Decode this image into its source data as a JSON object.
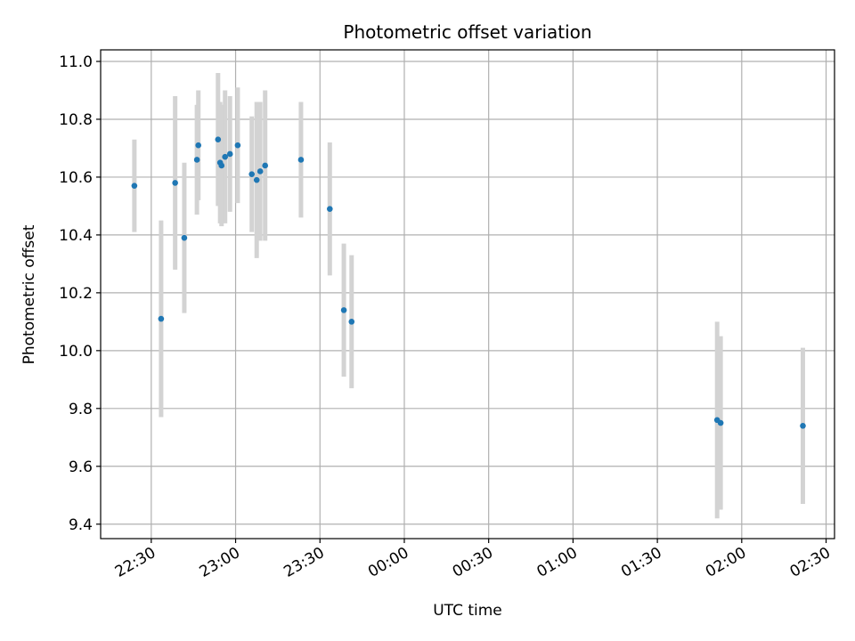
{
  "chart_data": {
    "type": "scatter",
    "title": "Photometric offset variation",
    "xlabel": "UTC time",
    "ylabel": "Photometric offset",
    "grid": true,
    "ylim": [
      9.35,
      11.04
    ],
    "xlim": [
      "22:12",
      "02:33"
    ],
    "yticks": [
      "9.4",
      "9.6",
      "9.8",
      "10.0",
      "10.2",
      "10.4",
      "10.6",
      "10.8",
      "11.0"
    ],
    "xticks": [
      "22:30",
      "23:00",
      "23:30",
      "00:00",
      "00:30",
      "01:00",
      "01:30",
      "02:00",
      "02:30"
    ],
    "colors": {
      "point": "#1f77b4",
      "errorbar": "#d3d3d3",
      "grid": "#b0b0b0"
    },
    "series": [
      {
        "points": [
          {
            "x": "22:24:00",
            "y": 10.57,
            "err": 0.16
          },
          {
            "x": "22:33:30",
            "y": 10.11,
            "err": 0.34
          },
          {
            "x": "22:38:30",
            "y": 10.58,
            "err": 0.3
          },
          {
            "x": "22:41:45",
            "y": 10.39,
            "err": 0.26
          },
          {
            "x": "22:46:15",
            "y": 10.66,
            "err": 0.19
          },
          {
            "x": "22:46:45",
            "y": 10.71,
            "err": 0.19
          },
          {
            "x": "22:53:45",
            "y": 10.73,
            "err": 0.23
          },
          {
            "x": "22:54:30",
            "y": 10.65,
            "err": 0.21
          },
          {
            "x": "22:55:00",
            "y": 10.64,
            "err": 0.21
          },
          {
            "x": "22:56:15",
            "y": 10.67,
            "err": 0.23
          },
          {
            "x": "22:58:00",
            "y": 10.68,
            "err": 0.2
          },
          {
            "x": "23:00:45",
            "y": 10.71,
            "err": 0.2
          },
          {
            "x": "23:05:45",
            "y": 10.61,
            "err": 0.2
          },
          {
            "x": "23:07:30",
            "y": 10.59,
            "err": 0.27
          },
          {
            "x": "23:08:45",
            "y": 10.62,
            "err": 0.24
          },
          {
            "x": "23:10:30",
            "y": 10.64,
            "err": 0.26
          },
          {
            "x": "23:23:15",
            "y": 10.66,
            "err": 0.2
          },
          {
            "x": "23:33:30",
            "y": 10.49,
            "err": 0.23
          },
          {
            "x": "23:38:30",
            "y": 10.14,
            "err": 0.23
          },
          {
            "x": "23:41:15",
            "y": 10.1,
            "err": 0.23
          },
          {
            "x": "01:51:15",
            "y": 9.76,
            "err": 0.34
          },
          {
            "x": "01:52:30",
            "y": 9.75,
            "err": 0.3
          },
          {
            "x": "02:21:45",
            "y": 9.74,
            "err": 0.27
          }
        ]
      }
    ]
  }
}
